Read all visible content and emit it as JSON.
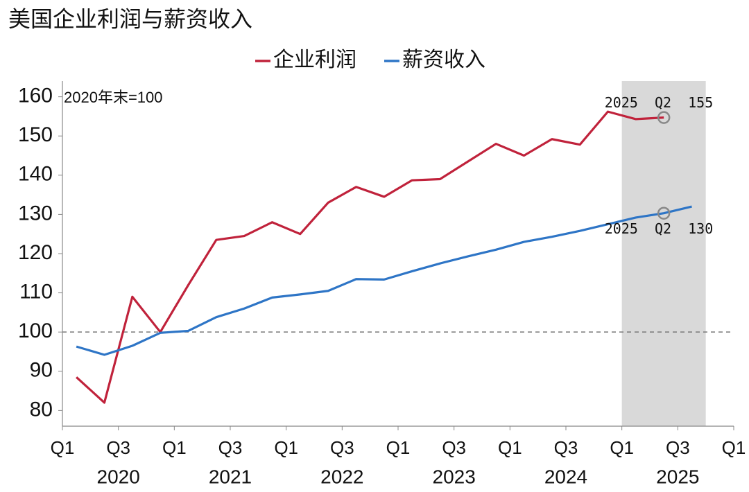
{
  "chart_data": {
    "type": "line",
    "title": "美国企业利润与薪资收入",
    "note": "2020年末=100",
    "x": [
      0.5,
      1.5,
      2.5,
      3.5,
      4.5,
      5.5,
      6.5,
      7.5,
      8.5,
      9.5,
      10.5,
      11.5,
      12.5,
      13.5,
      14.5,
      15.5,
      16.5,
      17.5,
      18.5,
      19.5,
      20.5,
      21.5,
      22.5
    ],
    "series": [
      {
        "name": "企业利润",
        "color": "#c0223b",
        "values": [
          88.5,
          82,
          109,
          100,
          112,
          123.5,
          124.5,
          128,
          125,
          133,
          137,
          134.5,
          138.7,
          139,
          143.5,
          148,
          145,
          149.2,
          147.8,
          156.2,
          154.3,
          154.7,
          null
        ]
      },
      {
        "name": "薪资收入",
        "color": "#2e75c6",
        "values": [
          96.3,
          94.2,
          96.5,
          99.8,
          100.3,
          103.8,
          106,
          108.8,
          109.6,
          110.5,
          113.5,
          113.4,
          115.5,
          117.5,
          119.3,
          121,
          123,
          124.3,
          125.8,
          127.5,
          129.2,
          130.3,
          132
        ]
      }
    ],
    "annotations": [
      {
        "text": "2025  Q2  155",
        "series": 0,
        "index": 21
      },
      {
        "text": "2025  Q2  130",
        "series": 1,
        "index": 21
      }
    ],
    "xlim": [
      0,
      24
    ],
    "xticks": [
      {
        "value": 0,
        "label": "Q1"
      },
      {
        "value": 2,
        "label": "Q3"
      },
      {
        "value": 4,
        "label": "Q1"
      },
      {
        "value": 6,
        "label": "Q3"
      },
      {
        "value": 8,
        "label": "Q1"
      },
      {
        "value": 10,
        "label": "Q3"
      },
      {
        "value": 12,
        "label": "Q1"
      },
      {
        "value": 14,
        "label": "Q3"
      },
      {
        "value": 16,
        "label": "Q1"
      },
      {
        "value": 18,
        "label": "Q3"
      },
      {
        "value": 20,
        "label": "Q1"
      },
      {
        "value": 22,
        "label": "Q3"
      },
      {
        "value": 24,
        "label": "Q1"
      }
    ],
    "years": [
      "2020",
      "2021",
      "2022",
      "2023",
      "2024",
      "2025"
    ],
    "ylim": [
      76,
      164
    ],
    "yticks": [
      80,
      90,
      100,
      110,
      120,
      130,
      140,
      150,
      160
    ],
    "reference_line": 100,
    "shaded_range": [
      20,
      23
    ],
    "legend": "top"
  }
}
